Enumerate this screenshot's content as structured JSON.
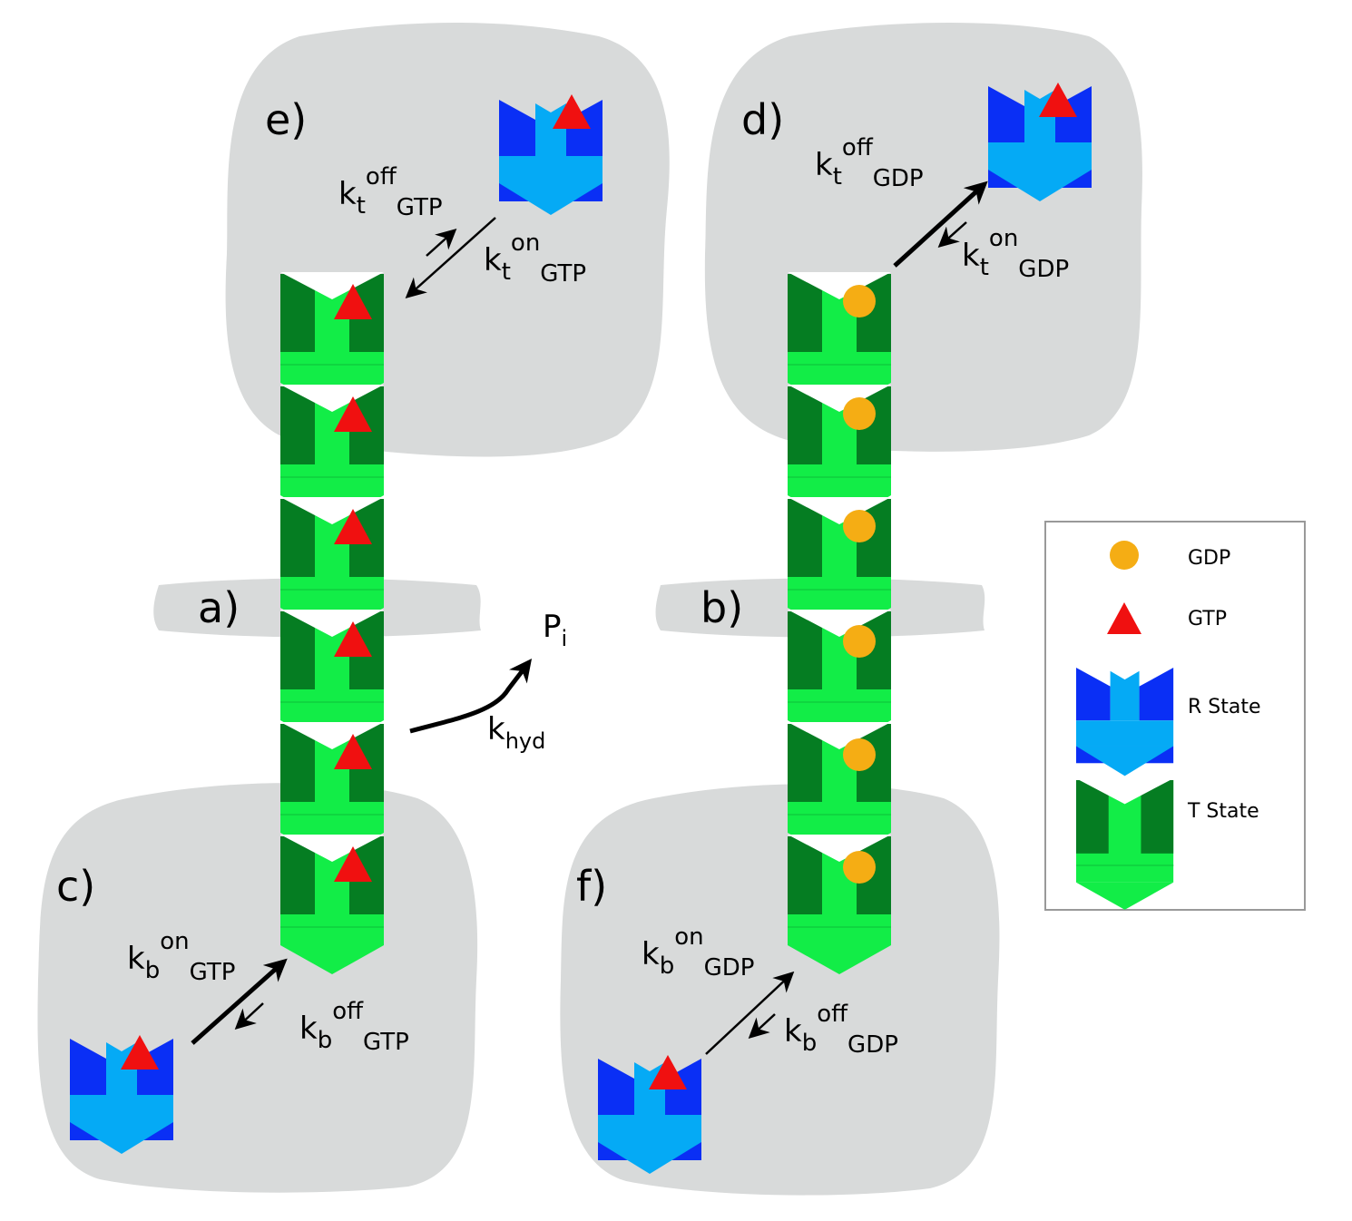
{
  "panels": {
    "a": "a)",
    "b": "b)",
    "c": "c)",
    "d": "d)",
    "e": "e)",
    "f": "f)"
  },
  "rates": {
    "kt_off_gtp": {
      "base": "k",
      "sub1": "t",
      "sup": "off",
      "sub2": "GTP"
    },
    "kt_on_gtp": {
      "base": "k",
      "sub1": "t",
      "sup": "on",
      "sub2": "GTP"
    },
    "kt_off_gdp": {
      "base": "k",
      "sub1": "t",
      "sup": "off",
      "sub2": "GDP"
    },
    "kt_on_gdp": {
      "base": "k",
      "sub1": "t",
      "sup": "on",
      "sub2": "GDP"
    },
    "kb_on_gtp": {
      "base": "k",
      "sub1": "b",
      "sup": "on",
      "sub2": "GTP"
    },
    "kb_off_gtp": {
      "base": "k",
      "sub1": "b",
      "sup": "off",
      "sub2": "GTP"
    },
    "kb_on_gdp": {
      "base": "k",
      "sub1": "b",
      "sup": "on",
      "sub2": "GDP"
    },
    "kb_off_gdp": {
      "base": "k",
      "sub1": "b",
      "sup": "off",
      "sub2": "GDP"
    },
    "k_hyd": {
      "base": "k",
      "sub": "hyd"
    },
    "p_i": {
      "base": "P",
      "sub": "i"
    }
  },
  "legend": {
    "gdp": "GDP",
    "gtp": "GTP",
    "r_state": "R State",
    "t_state": "T State"
  },
  "colors": {
    "blob": "#d8dada",
    "gtp": "#f01010",
    "gdp": "#f5ad14",
    "t_dark": "#057d22",
    "t_light": "#12ed47",
    "r_dark": "#0a2ff5",
    "r_light": "#05aaf5"
  }
}
